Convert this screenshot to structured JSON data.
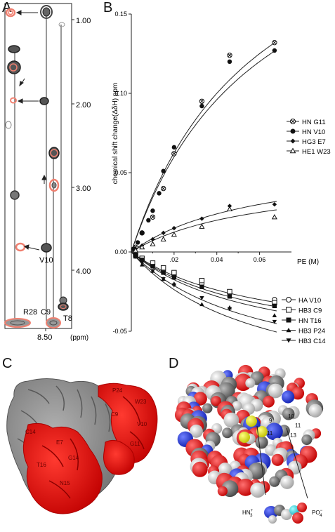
{
  "panels": {
    "A": "A",
    "B": "B",
    "C": "C",
    "D": "D"
  },
  "nmr": {
    "y_ticks": [
      "1.00",
      "2.00",
      "3.00",
      "4.00"
    ],
    "x_ticks": [
      "8.50"
    ],
    "x_unit": "(ppm)",
    "labels": {
      "v10": "V10",
      "r28": "R28",
      "c9": "C9",
      "t8": "T8"
    }
  },
  "chart_data": {
    "type": "scatter",
    "xlabel": "PE (M)",
    "ylabel": "chemical shift change(ΔδH) ppm",
    "xlim": [
      0,
      0.07
    ],
    "ylim": [
      -0.05,
      0.15
    ],
    "x_ticks": [
      ".02",
      "0.04",
      "0.06"
    ],
    "y_ticks": [
      "0.15",
      "0.10",
      "0.05",
      "0.00",
      "-0.05"
    ],
    "series": [
      {
        "name": "HN G11",
        "marker": "circle-cross",
        "x": [
          0.002,
          0.005,
          0.01,
          0.015,
          0.02,
          0.033,
          0.046,
          0.067
        ],
        "y": [
          0.003,
          0.012,
          0.022,
          0.04,
          0.062,
          0.095,
          0.124,
          0.132
        ]
      },
      {
        "name": "HN V10",
        "marker": "filled-circle",
        "x": [
          0.001,
          0.003,
          0.005,
          0.008,
          0.01,
          0.013,
          0.015,
          0.02,
          0.033,
          0.046,
          0.067
        ],
        "y": [
          0.002,
          0.006,
          0.012,
          0.02,
          0.026,
          0.037,
          0.051,
          0.066,
          0.092,
          0.12,
          0.127
        ]
      },
      {
        "name": "HG3 E7",
        "marker": "filled-diamond",
        "x": [
          0.002,
          0.005,
          0.01,
          0.015,
          0.02,
          0.033,
          0.046,
          0.067
        ],
        "y": [
          0.002,
          0.004,
          0.008,
          0.012,
          0.015,
          0.021,
          0.029,
          0.03
        ]
      },
      {
        "name": "HE1 W23",
        "marker": "open-triangle",
        "x": [
          0.002,
          0.005,
          0.01,
          0.015,
          0.02,
          0.033,
          0.046,
          0.067
        ],
        "y": [
          0.001,
          0.003,
          0.005,
          0.008,
          0.011,
          0.016,
          0.027,
          0.022
        ]
      },
      {
        "name": "HA  V10",
        "marker": "open-circle",
        "x": [
          0.002,
          0.005,
          0.01,
          0.015,
          0.02,
          0.033,
          0.046,
          0.067
        ],
        "y": [
          -0.002,
          -0.005,
          -0.008,
          -0.012,
          -0.015,
          -0.02,
          -0.026,
          -0.03
        ]
      },
      {
        "name": "HB3 C9",
        "marker": "open-square",
        "x": [
          0.002,
          0.005,
          0.01,
          0.015,
          0.02,
          0.033,
          0.046,
          0.067
        ],
        "y": [
          -0.002,
          -0.004,
          -0.007,
          -0.01,
          -0.013,
          -0.018,
          -0.025,
          -0.032
        ]
      },
      {
        "name": "HN T16",
        "marker": "filled-square",
        "x": [
          0.002,
          0.005,
          0.01,
          0.015,
          0.02,
          0.033,
          0.046,
          0.067
        ],
        "y": [
          -0.002,
          -0.005,
          -0.009,
          -0.013,
          -0.016,
          -0.022,
          -0.028,
          -0.034
        ]
      },
      {
        "name": "HB3 P24",
        "marker": "filled-triangle",
        "x": [
          0.002,
          0.005,
          0.01,
          0.015,
          0.02,
          0.033,
          0.046,
          0.067
        ],
        "y": [
          -0.003,
          -0.008,
          -0.012,
          -0.017,
          -0.02,
          -0.033,
          -0.035,
          -0.04
        ]
      },
      {
        "name": "HB3 C14",
        "marker": "filled-triangle-down",
        "x": [
          0.002,
          0.005,
          0.01,
          0.015,
          0.02,
          0.033,
          0.046,
          0.067
        ],
        "y": [
          -0.003,
          -0.007,
          -0.012,
          -0.017,
          -0.021,
          -0.029,
          -0.036,
          -0.044
        ]
      }
    ]
  },
  "surface": {
    "labels": [
      "P24",
      "W23",
      "C9",
      "V10",
      "G11",
      "C14",
      "E7",
      "T16",
      "N15",
      "G14"
    ]
  },
  "spacefill": {
    "labels": [
      "10",
      "11",
      "13",
      "9",
      "11"
    ],
    "hn3": "HN",
    "hn3_super": "+",
    "hn3_sub": "3",
    "po4": "PO",
    "po4_super": "−",
    "po4_sub": "4"
  },
  "colors": {
    "red": "#e0100e",
    "salmon": "#f08070",
    "gray": "#808080"
  }
}
